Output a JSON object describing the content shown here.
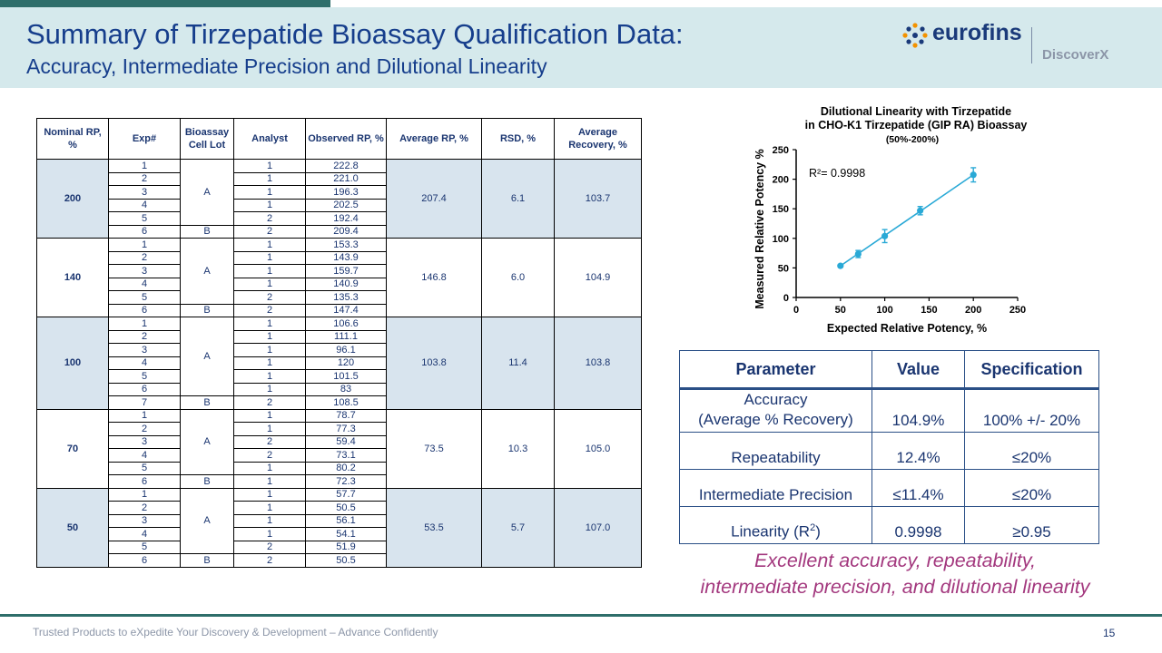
{
  "header": {
    "title": "Summary of Tirzepatide Bioassay Qualification Data:",
    "subtitle": "Accuracy, Intermediate Precision and Dilutional Linearity"
  },
  "logo": {
    "brand": "eurofins",
    "sub": "DiscoverX"
  },
  "data_table": {
    "headers": [
      "Nominal RP, %",
      "Exp#",
      "Bioassay Cell Lot",
      "Analyst",
      "Observed RP, %",
      "Average RP, %",
      "RSD, %",
      "Average Recovery, %"
    ],
    "groups": [
      {
        "nominal": "200",
        "avg_rp": "207.4",
        "rsd": "6.1",
        "recovery": "103.7",
        "lots": [
          {
            "lot": "A",
            "count": 5
          },
          {
            "lot": "B",
            "count": 1
          }
        ],
        "rows": [
          [
            "1",
            "1",
            "222.8"
          ],
          [
            "2",
            "1",
            "221.0"
          ],
          [
            "3",
            "1",
            "196.3"
          ],
          [
            "4",
            "1",
            "202.5"
          ],
          [
            "5",
            "2",
            "192.4"
          ],
          [
            "6",
            "2",
            "209.4"
          ]
        ]
      },
      {
        "nominal": "140",
        "avg_rp": "146.8",
        "rsd": "6.0",
        "recovery": "104.9",
        "lots": [
          {
            "lot": "A",
            "count": 5
          },
          {
            "lot": "B",
            "count": 1
          }
        ],
        "rows": [
          [
            "1",
            "1",
            "153.3"
          ],
          [
            "2",
            "1",
            "143.9"
          ],
          [
            "3",
            "1",
            "159.7"
          ],
          [
            "4",
            "1",
            "140.9"
          ],
          [
            "5",
            "2",
            "135.3"
          ],
          [
            "6",
            "2",
            "147.4"
          ]
        ]
      },
      {
        "nominal": "100",
        "avg_rp": "103.8",
        "rsd": "11.4",
        "recovery": "103.8",
        "lots": [
          {
            "lot": "A",
            "count": 6
          },
          {
            "lot": "B",
            "count": 1
          }
        ],
        "rows": [
          [
            "1",
            "1",
            "106.6"
          ],
          [
            "2",
            "1",
            "111.1"
          ],
          [
            "3",
            "1",
            "96.1"
          ],
          [
            "4",
            "1",
            "120"
          ],
          [
            "5",
            "1",
            "101.5"
          ],
          [
            "6",
            "1",
            "83"
          ],
          [
            "7",
            "2",
            "108.5"
          ]
        ]
      },
      {
        "nominal": "70",
        "avg_rp": "73.5",
        "rsd": "10.3",
        "recovery": "105.0",
        "lots": [
          {
            "lot": "A",
            "count": 5
          },
          {
            "lot": "B",
            "count": 1
          }
        ],
        "rows": [
          [
            "1",
            "1",
            "78.7"
          ],
          [
            "2",
            "1",
            "77.3"
          ],
          [
            "3",
            "2",
            "59.4"
          ],
          [
            "4",
            "2",
            "73.1"
          ],
          [
            "5",
            "1",
            "80.2"
          ],
          [
            "6",
            "1",
            "72.3"
          ]
        ]
      },
      {
        "nominal": "50",
        "avg_rp": "53.5",
        "rsd": "5.7",
        "recovery": "107.0",
        "lots": [
          {
            "lot": "A",
            "count": 5
          },
          {
            "lot": "B",
            "count": 1
          }
        ],
        "rows": [
          [
            "1",
            "1",
            "57.7"
          ],
          [
            "2",
            "1",
            "50.5"
          ],
          [
            "3",
            "1",
            "56.1"
          ],
          [
            "4",
            "1",
            "54.1"
          ],
          [
            "5",
            "2",
            "51.9"
          ],
          [
            "6",
            "2",
            "50.5"
          ]
        ]
      }
    ]
  },
  "chart_data": {
    "type": "scatter",
    "title_lines": [
      "Dilutional Linearity with Tirzepatide",
      "in CHO-K1 Tirzepatide (GIP RA) Bioassay"
    ],
    "subtitle": "(50%-200%)",
    "xlabel": "Expected Relative Potency, %",
    "ylabel": "Measured Relative Potency %",
    "xlim": [
      0,
      250
    ],
    "ylim": [
      0,
      250
    ],
    "x_ticks": [
      "0",
      "50",
      "100",
      "150",
      "200",
      "250"
    ],
    "y_ticks": [
      "0",
      "50",
      "100",
      "150",
      "200",
      "250"
    ],
    "annotation": "R²= 0.9998",
    "points": [
      {
        "x": 50,
        "y": 53.5,
        "err": 2
      },
      {
        "x": 70,
        "y": 73.5,
        "err": 6
      },
      {
        "x": 100,
        "y": 103.8,
        "err": 11
      },
      {
        "x": 140,
        "y": 146.8,
        "err": 7
      },
      {
        "x": 200,
        "y": 207.4,
        "err": 12
      }
    ],
    "color": "#29a9d6"
  },
  "param_table": {
    "headers": [
      "Parameter",
      "Value",
      "Specification"
    ],
    "rows": [
      {
        "param_line1": "Accuracy",
        "param_line2": "(Average % Recovery)",
        "value": "104.9%",
        "spec": "100% +/- 20%"
      },
      {
        "param": "Repeatability",
        "value": "12.4%",
        "spec": "≤20%"
      },
      {
        "param": "Intermediate Precision",
        "value": "≤11.4%",
        "spec": "≤20%"
      },
      {
        "param_pre": "Linearity (R",
        "param_sup": "2",
        "param_post": ")",
        "value": "0.9998",
        "spec": "≥0.95"
      }
    ]
  },
  "conclusion": {
    "line1": "Excellent accuracy, repeatability,",
    "line2": "intermediate precision, and dilutional linearity"
  },
  "footer": {
    "text": "Trusted Products to eXpedite Your Discovery & Development – Advance Confidently",
    "page": "15"
  }
}
